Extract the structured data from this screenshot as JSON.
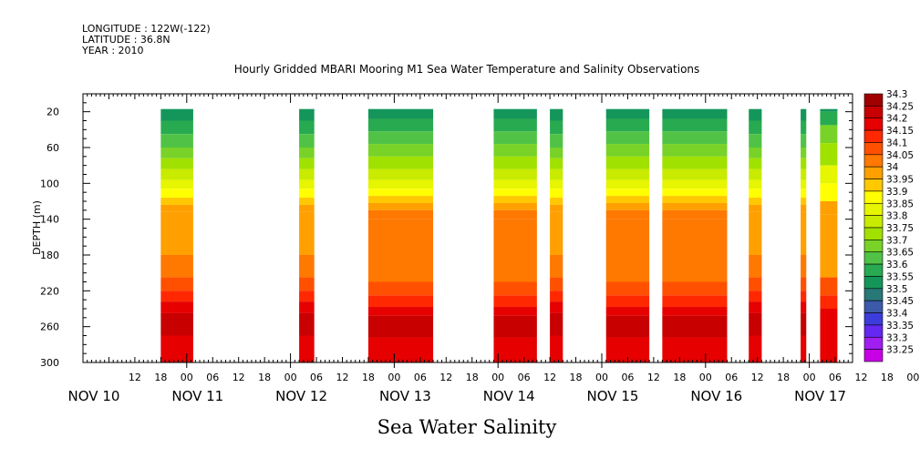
{
  "header": {
    "longitude": "LONGITUDE : 122W(-122)",
    "latitude": "LATITUDE : 36.8N",
    "year": "YEAR : 2010"
  },
  "chart_data": {
    "type": "heatmap",
    "title": "Hourly Gridded MBARI Mooring M1 Sea Water Temperature and Salinity Observations",
    "subtitle": "Sea Water Salinity",
    "ylabel": "DEPTH (m)",
    "xlabel": "",
    "y_reversed": true,
    "ylim": [
      0,
      300
    ],
    "y_ticks": [
      20,
      60,
      100,
      140,
      180,
      220,
      260,
      300
    ],
    "x_range_hours": [
      0,
      178
    ],
    "x_day_labels": [
      {
        "label": "NOV 10",
        "hour": 0
      },
      {
        "label": "NOV 11",
        "hour": 24
      },
      {
        "label": "NOV 12",
        "hour": 48
      },
      {
        "label": "NOV 13",
        "hour": 72
      },
      {
        "label": "NOV 14",
        "hour": 96
      },
      {
        "label": "NOV 15",
        "hour": 120
      },
      {
        "label": "NOV 16",
        "hour": 144
      },
      {
        "label": "NOV 17",
        "hour": 168
      }
    ],
    "x_tick_labels": [
      "12",
      "18",
      "00",
      "06",
      "12",
      "18",
      "00",
      "06",
      "12",
      "18",
      "00",
      "06",
      "12",
      "18",
      "00",
      "06",
      "12",
      "18",
      "00",
      "06",
      "12",
      "18",
      "00",
      "06",
      "12",
      "18",
      "00",
      "06",
      "12",
      "18",
      "00",
      "06"
    ],
    "x_tick_first_hour": 12,
    "x_tick_step_hours": 6,
    "colorbar": {
      "levels": [
        "34.3",
        "34.25",
        "34.2",
        "34.15",
        "34.1",
        "34.05",
        "34",
        "33.95",
        "33.9",
        "33.85",
        "33.8",
        "33.75",
        "33.7",
        "33.65",
        "33.6",
        "33.55",
        "33.5",
        "33.45",
        "33.4",
        "33.35",
        "33.3",
        "33.25"
      ],
      "colors": [
        "#a00000",
        "#c80000",
        "#e60000",
        "#ff2800",
        "#ff5000",
        "#ff7800",
        "#ffa000",
        "#ffc800",
        "#ffff00",
        "#e6f500",
        "#c8eb00",
        "#a0e100",
        "#78d228",
        "#50c346",
        "#28aa50",
        "#14965a",
        "#287878",
        "#3c5aaa",
        "#3c3cdc",
        "#6428f0",
        "#a01ef0",
        "#c800e6"
      ]
    },
    "data_segments": [
      {
        "start_hour": 18,
        "end_hour": 25.5,
        "pattern": "a",
        "bottom_complete": true
      },
      {
        "start_hour": 50,
        "end_hour": 53.5,
        "pattern": "a",
        "bottom_complete": true
      },
      {
        "start_hour": 66,
        "end_hour": 81,
        "pattern": "b",
        "bottom_complete": true
      },
      {
        "start_hour": 95,
        "end_hour": 105,
        "pattern": "b",
        "bottom_complete": true
      },
      {
        "start_hour": 108,
        "end_hour": 111,
        "pattern": "a",
        "bottom_complete": true
      },
      {
        "start_hour": 121,
        "end_hour": 131,
        "pattern": "b",
        "bottom_complete": true
      },
      {
        "start_hour": 134,
        "end_hour": 149,
        "pattern": "b",
        "bottom_complete": true
      },
      {
        "start_hour": 154,
        "end_hour": 157,
        "pattern": "a",
        "bottom_complete": true
      },
      {
        "start_hour": 166,
        "end_hour": 167.3,
        "pattern": "a",
        "bottom_complete": true
      },
      {
        "start_hour": 170.5,
        "end_hour": 174.5,
        "pattern": "c",
        "bottom_complete": true
      }
    ],
    "profiles": {
      "a": [
        {
          "depth_from": 0,
          "depth_to": 30,
          "level": "33.55"
        },
        {
          "depth_from": 30,
          "depth_to": 45,
          "level": "33.6"
        },
        {
          "depth_from": 45,
          "depth_to": 60,
          "level": "33.65"
        },
        {
          "depth_from": 60,
          "depth_to": 72,
          "level": "33.7"
        },
        {
          "depth_from": 72,
          "depth_to": 84,
          "level": "33.75"
        },
        {
          "depth_from": 84,
          "depth_to": 96,
          "level": "33.8"
        },
        {
          "depth_from": 96,
          "depth_to": 106,
          "level": "33.85"
        },
        {
          "depth_from": 106,
          "depth_to": 116,
          "level": "33.9"
        },
        {
          "depth_from": 116,
          "depth_to": 124,
          "level": "33.95"
        },
        {
          "depth_from": 124,
          "depth_to": 132,
          "level": "34"
        },
        {
          "depth_from": 132,
          "depth_to": 180,
          "level": "34"
        },
        {
          "depth_from": 180,
          "depth_to": 205,
          "level": "34.05"
        },
        {
          "depth_from": 205,
          "depth_to": 220,
          "level": "34.1"
        },
        {
          "depth_from": 220,
          "depth_to": 232,
          "level": "34.15"
        },
        {
          "depth_from": 232,
          "depth_to": 245,
          "level": "34.2"
        },
        {
          "depth_from": 245,
          "depth_to": 270,
          "level": "34.25"
        },
        {
          "depth_from": 270,
          "depth_to": 300,
          "level": "34.2"
        }
      ],
      "b": [
        {
          "depth_from": 0,
          "depth_to": 28,
          "level": "33.55"
        },
        {
          "depth_from": 28,
          "depth_to": 42,
          "level": "33.6"
        },
        {
          "depth_from": 42,
          "depth_to": 56,
          "level": "33.65"
        },
        {
          "depth_from": 56,
          "depth_to": 70,
          "level": "33.7"
        },
        {
          "depth_from": 70,
          "depth_to": 84,
          "level": "33.75"
        },
        {
          "depth_from": 84,
          "depth_to": 96,
          "level": "33.8"
        },
        {
          "depth_from": 96,
          "depth_to": 106,
          "level": "33.85"
        },
        {
          "depth_from": 106,
          "depth_to": 114,
          "level": "33.9"
        },
        {
          "depth_from": 114,
          "depth_to": 122,
          "level": "33.95"
        },
        {
          "depth_from": 122,
          "depth_to": 130,
          "level": "34"
        },
        {
          "depth_from": 130,
          "depth_to": 140,
          "level": "34.05"
        },
        {
          "depth_from": 140,
          "depth_to": 210,
          "level": "34.05"
        },
        {
          "depth_from": 210,
          "depth_to": 225,
          "level": "34.1"
        },
        {
          "depth_from": 225,
          "depth_to": 238,
          "level": "34.15"
        },
        {
          "depth_from": 238,
          "depth_to": 248,
          "level": "34.2"
        },
        {
          "depth_from": 248,
          "depth_to": 272,
          "level": "34.25"
        },
        {
          "depth_from": 272,
          "depth_to": 300,
          "level": "34.2"
        }
      ],
      "c": [
        {
          "depth_from": 0,
          "depth_to": 10,
          "level": "33.45"
        },
        {
          "depth_from": 10,
          "depth_to": 20,
          "level": "33.55"
        },
        {
          "depth_from": 20,
          "depth_to": 35,
          "level": "33.6"
        },
        {
          "depth_from": 35,
          "depth_to": 55,
          "level": "33.7"
        },
        {
          "depth_from": 55,
          "depth_to": 80,
          "level": "33.75"
        },
        {
          "depth_from": 80,
          "depth_to": 100,
          "level": "33.85"
        },
        {
          "depth_from": 100,
          "depth_to": 120,
          "level": "33.9"
        },
        {
          "depth_from": 120,
          "depth_to": 135,
          "level": "34"
        },
        {
          "depth_from": 135,
          "depth_to": 205,
          "level": "34"
        },
        {
          "depth_from": 205,
          "depth_to": 225,
          "level": "34.1"
        },
        {
          "depth_from": 225,
          "depth_to": 240,
          "level": "34.15"
        },
        {
          "depth_from": 240,
          "depth_to": 300,
          "level": "34.2"
        }
      ]
    }
  }
}
